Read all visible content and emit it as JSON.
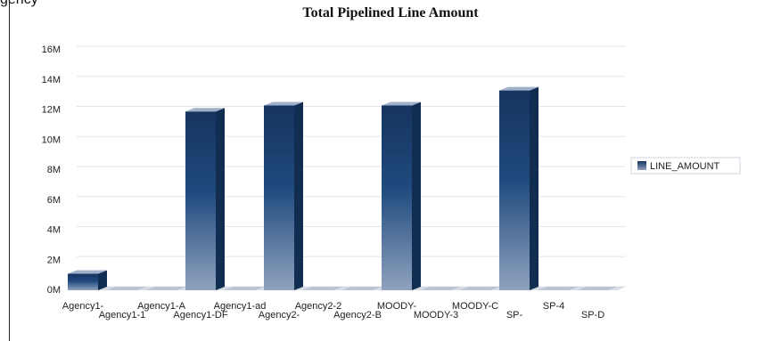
{
  "page": {
    "cut_off_text": "gency"
  },
  "chart_data": {
    "type": "bar",
    "title": "Total Pipelined Line Amount",
    "xlabel": "",
    "ylabel": "",
    "categories": [
      "Agency1-",
      "Agency1-1",
      "Agency1-A",
      "Agency1-DF",
      "Agency1-ad",
      "Agency2-",
      "Agency2-2",
      "Agency2-B",
      "MOODY-",
      "MOODY-3",
      "MOODY-C",
      "SP-",
      "SP-4",
      "SP-D"
    ],
    "series": [
      {
        "name": "LINE_AMOUNT",
        "values": [
          1100000,
          0,
          0,
          11900000,
          0,
          12300000,
          0,
          0,
          12300000,
          0,
          0,
          13300000,
          0,
          0
        ]
      }
    ],
    "ylim": [
      0,
      16000000
    ],
    "yticks": [
      {
        "value": 0,
        "label": "0M"
      },
      {
        "value": 2000000,
        "label": "2M"
      },
      {
        "value": 4000000,
        "label": "4M"
      },
      {
        "value": 6000000,
        "label": "6M"
      },
      {
        "value": 8000000,
        "label": "8M"
      },
      {
        "value": 10000000,
        "label": "10M"
      },
      {
        "value": 12000000,
        "label": "12M"
      },
      {
        "value": 14000000,
        "label": "14M"
      },
      {
        "value": 16000000,
        "label": "16M"
      }
    ],
    "grid": true,
    "legend_position": "right",
    "colors": {
      "bar_front_top": "#16345f",
      "bar_front_mid": "#1f4a7e",
      "bar_front_bottom": "#8fa2be",
      "bar_side": "#122d52",
      "bar_top": "#9fb0c8",
      "floor": "#d6dbe3",
      "grid": "#e2e6ec",
      "axis_text": "#222222"
    }
  }
}
